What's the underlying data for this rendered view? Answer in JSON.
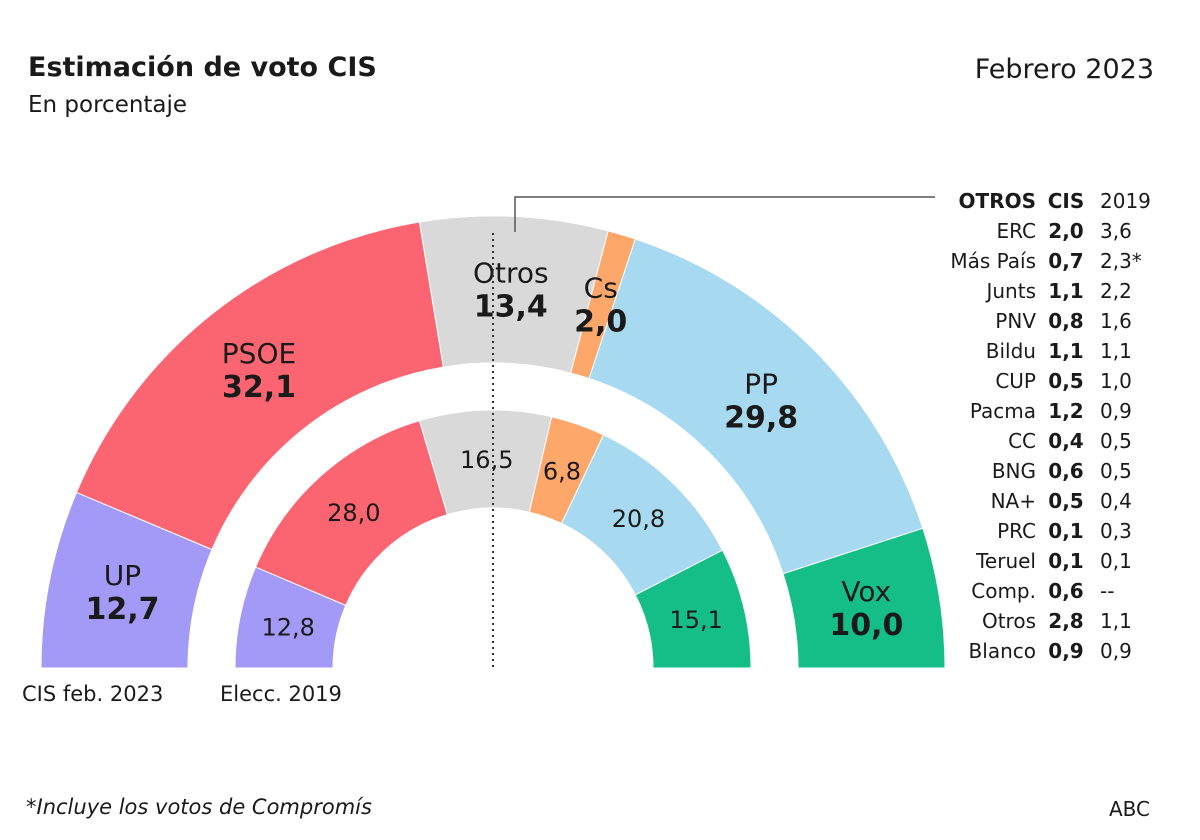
{
  "header": {
    "title": "Estimación de voto CIS",
    "subtitle": "En porcentaje",
    "date": "Febrero 2023"
  },
  "footer": {
    "note": "*Incluye los votos de Compromís",
    "source": "ABC"
  },
  "chart_data": {
    "type": "semicircle-donut",
    "title": "Estimación de voto CIS",
    "subtitle": "En porcentaje",
    "rings": [
      {
        "name": "CIS feb. 2023",
        "segments": [
          {
            "party": "UP",
            "value": 12.7,
            "label": "12,7",
            "color": "#a399f7"
          },
          {
            "party": "PSOE",
            "value": 32.1,
            "label": "32,1",
            "color": "#fb6571"
          },
          {
            "party": "Otros",
            "value": 13.4,
            "label": "13,4",
            "color": "#d9d9d9"
          },
          {
            "party": "Cs",
            "value": 2.0,
            "label": "2,0",
            "color": "#fda76a"
          },
          {
            "party": "PP",
            "value": 29.8,
            "label": "29,8",
            "color": "#a7daf1"
          },
          {
            "party": "Vox",
            "value": 10.0,
            "label": "10,0",
            "color": "#15be86"
          }
        ]
      },
      {
        "name": "Elecc. 2019",
        "segments": [
          {
            "party": "UP",
            "value": 12.8,
            "label": "12,8",
            "color": "#a399f7"
          },
          {
            "party": "PSOE",
            "value": 28.0,
            "label": "28,0",
            "color": "#fb6571"
          },
          {
            "party": "Otros",
            "value": 16.5,
            "label": "16,5",
            "color": "#d9d9d9"
          },
          {
            "party": "Cs",
            "value": 6.8,
            "label": "6,8",
            "color": "#fda76a"
          },
          {
            "party": "PP",
            "value": 20.8,
            "label": "20,8",
            "color": "#a7daf1"
          },
          {
            "party": "Vox",
            "value": 15.1,
            "label": "15,1",
            "color": "#15be86"
          }
        ]
      }
    ],
    "table": {
      "headers": [
        "OTROS",
        "CIS",
        "2019"
      ],
      "rows": [
        {
          "party": "ERC",
          "cis": "2,0",
          "y2019": "3,6"
        },
        {
          "party": "Más País",
          "cis": "0,7",
          "y2019": "2,3*"
        },
        {
          "party": "Junts",
          "cis": "1,1",
          "y2019": "2,2"
        },
        {
          "party": "PNV",
          "cis": "0,8",
          "y2019": "1,6"
        },
        {
          "party": "Bildu",
          "cis": "1,1",
          "y2019": "1,1"
        },
        {
          "party": "CUP",
          "cis": "0,5",
          "y2019": "1,0"
        },
        {
          "party": "Pacma",
          "cis": "1,2",
          "y2019": "0,9"
        },
        {
          "party": "CC",
          "cis": "0,4",
          "y2019": "0,5"
        },
        {
          "party": "BNG",
          "cis": "0,6",
          "y2019": "0,5"
        },
        {
          "party": "NA+",
          "cis": "0,5",
          "y2019": "0,4"
        },
        {
          "party": "PRC",
          "cis": "0,1",
          "y2019": "0,3"
        },
        {
          "party": "Teruel",
          "cis": "0,1",
          "y2019": "0,1"
        },
        {
          "party": "Comp.",
          "cis": "0,6",
          "y2019": "--"
        },
        {
          "party": "Otros",
          "cis": "2,8",
          "y2019": "1,1"
        },
        {
          "party": "Blanco",
          "cis": "0,9",
          "y2019": "0,9"
        }
      ]
    }
  }
}
